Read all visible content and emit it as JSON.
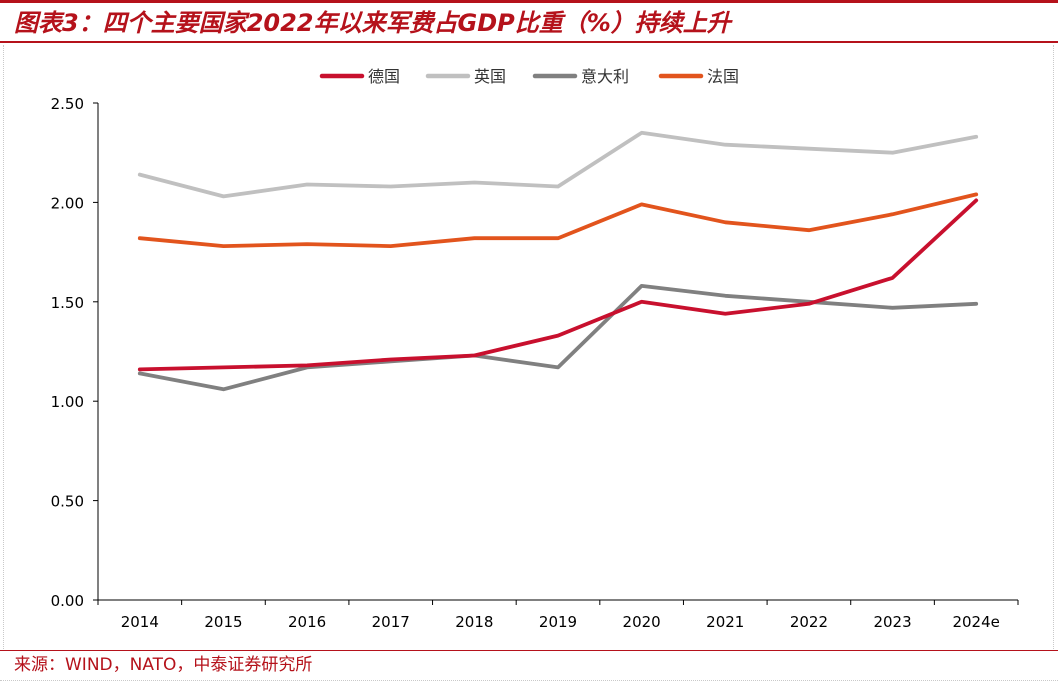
{
  "header": {
    "title": "图表3：四个主要国家2022年以来军费占GDP比重（%）持续上升"
  },
  "footer": {
    "source": "来源：WIND，NATO，中泰证券研究所"
  },
  "colors": {
    "brand": "#b5121b"
  },
  "chart_data": {
    "type": "line",
    "title": "图表3：四个主要国家2022年以来军费占GDP比重（%）持续上升",
    "xlabel": "",
    "ylabel": "",
    "ylim": [
      0,
      2.5
    ],
    "yticks": [
      "0.00",
      "0.50",
      "1.00",
      "1.50",
      "2.00",
      "2.50"
    ],
    "categories": [
      "2014",
      "2015",
      "2016",
      "2017",
      "2018",
      "2019",
      "2020",
      "2021",
      "2022",
      "2023",
      "2024e"
    ],
    "legend_position": "top",
    "series": [
      {
        "name": "德国",
        "color": "#c8102e",
        "values": [
          1.16,
          1.17,
          1.18,
          1.21,
          1.23,
          1.33,
          1.5,
          1.44,
          1.49,
          1.62,
          2.01
        ]
      },
      {
        "name": "英国",
        "color": "#c0c0c0",
        "values": [
          2.14,
          2.03,
          2.09,
          2.08,
          2.1,
          2.08,
          2.35,
          2.29,
          2.27,
          2.25,
          2.33
        ]
      },
      {
        "name": "意大利",
        "color": "#808080",
        "values": [
          1.14,
          1.06,
          1.17,
          1.2,
          1.23,
          1.17,
          1.58,
          1.53,
          1.5,
          1.47,
          1.49
        ]
      },
      {
        "name": "法国",
        "color": "#e2541d",
        "values": [
          1.82,
          1.78,
          1.79,
          1.78,
          1.82,
          1.82,
          1.99,
          1.9,
          1.86,
          1.94,
          2.04
        ]
      }
    ]
  }
}
